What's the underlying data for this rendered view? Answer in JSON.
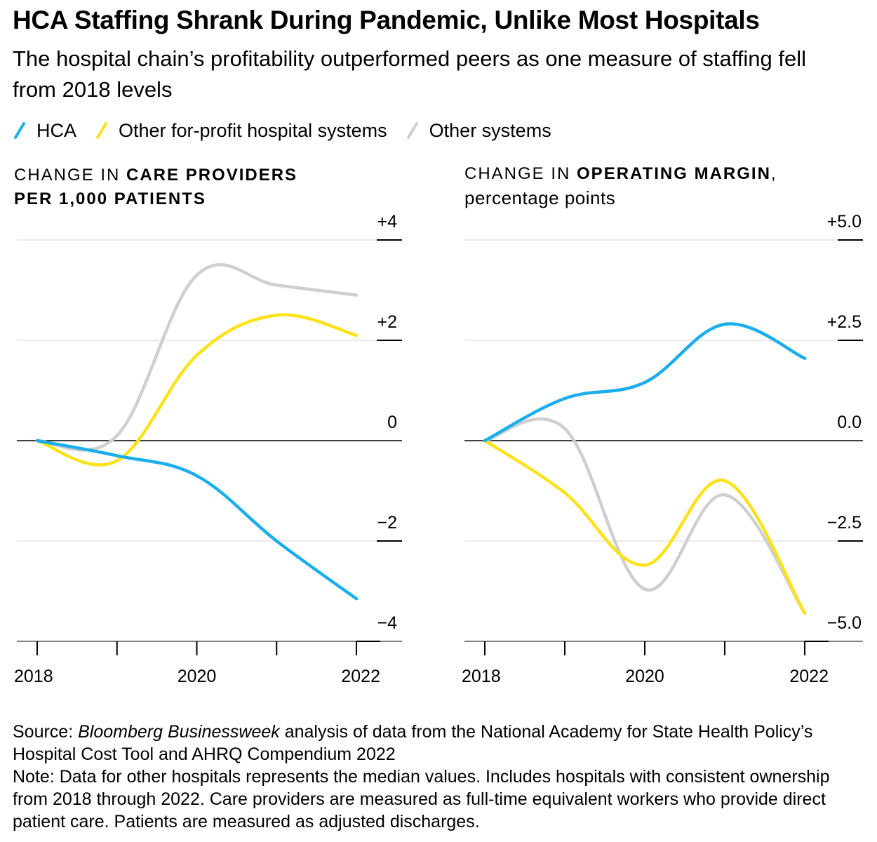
{
  "title": "HCA Staffing Shrank During Pandemic, Unlike Most Hospitals",
  "subtitle": "The hospital chain’s profitability outperformed peers as one measure of staffing fell from 2018 levels",
  "legend": [
    {
      "label": "HCA",
      "color": "#1aaeed"
    },
    {
      "label": "Other for-profit hospital systems",
      "color": "#fbe21b"
    },
    {
      "label": "Other systems",
      "color": "#cfcfcf"
    }
  ],
  "footer": {
    "source_prefix": "Source: ",
    "source_pub": "Bloomberg Businessweek",
    "source_rest": " analysis of data from the National Academy for State Health Policy’s Hospital Cost Tool and AHRQ Compendium 2022",
    "note": "Note: Data for other hospitals represents the median values. Includes hospitals with consistent ownership from 2018 through 2022. Care providers are measured as full-time equivalent workers who provide direct patient care. Patients are measured as adjusted discharges."
  },
  "chart_data": [
    {
      "type": "line",
      "label_prefix": "CHANGE IN ",
      "label_bold_1": "CARE PROVIDERS",
      "label_bold_2": "PER 1,000 PATIENTS",
      "label_suffix": "",
      "label_line2": "",
      "x": [
        2018,
        2019,
        2020,
        2021,
        2022
      ],
      "x_tick_labels": [
        "2018",
        "",
        "2020",
        "",
        "2022"
      ],
      "ylim": [
        -4,
        4
      ],
      "y_ticks": [
        4,
        2,
        0,
        -2,
        -4
      ],
      "y_tick_labels": [
        "+4",
        "+2",
        "0",
        "−2",
        "−4"
      ],
      "grid": true,
      "series": [
        {
          "name": "Other systems",
          "color": "#cfcfcf",
          "values": [
            0,
            0.1,
            3.3,
            3.1,
            2.9
          ]
        },
        {
          "name": "Other for-profit hospital systems",
          "color": "#fbe21b",
          "values": [
            0,
            -0.4,
            1.7,
            2.5,
            2.1
          ]
        },
        {
          "name": "HCA",
          "color": "#1aaeed",
          "values": [
            0,
            -0.3,
            -0.7,
            -2.0,
            -3.15
          ]
        }
      ]
    },
    {
      "type": "line",
      "label_prefix": "CHANGE IN ",
      "label_bold_1": "OPERATING MARGIN",
      "label_bold_2": "",
      "label_suffix": ",",
      "label_line2": "percentage points",
      "x": [
        2018,
        2019,
        2020,
        2021,
        2022
      ],
      "x_tick_labels": [
        "2018",
        "",
        "2020",
        "",
        "2022"
      ],
      "ylim": [
        -5,
        5
      ],
      "y_ticks": [
        5,
        2.5,
        0,
        -2.5,
        -5
      ],
      "y_tick_labels": [
        "+5.0",
        "+2.5",
        "0.0",
        "−2.5",
        "−5.0"
      ],
      "grid": true,
      "series": [
        {
          "name": "Other systems",
          "color": "#cfcfcf",
          "values": [
            0,
            0.3,
            -3.7,
            -1.35,
            -4.3
          ]
        },
        {
          "name": "Other for-profit hospital systems",
          "color": "#fbe21b",
          "values": [
            0,
            -1.3,
            -3.1,
            -1.0,
            -4.3
          ]
        },
        {
          "name": "HCA",
          "color": "#1aaeed",
          "values": [
            0,
            1.05,
            1.45,
            2.9,
            2.05
          ]
        }
      ]
    }
  ]
}
